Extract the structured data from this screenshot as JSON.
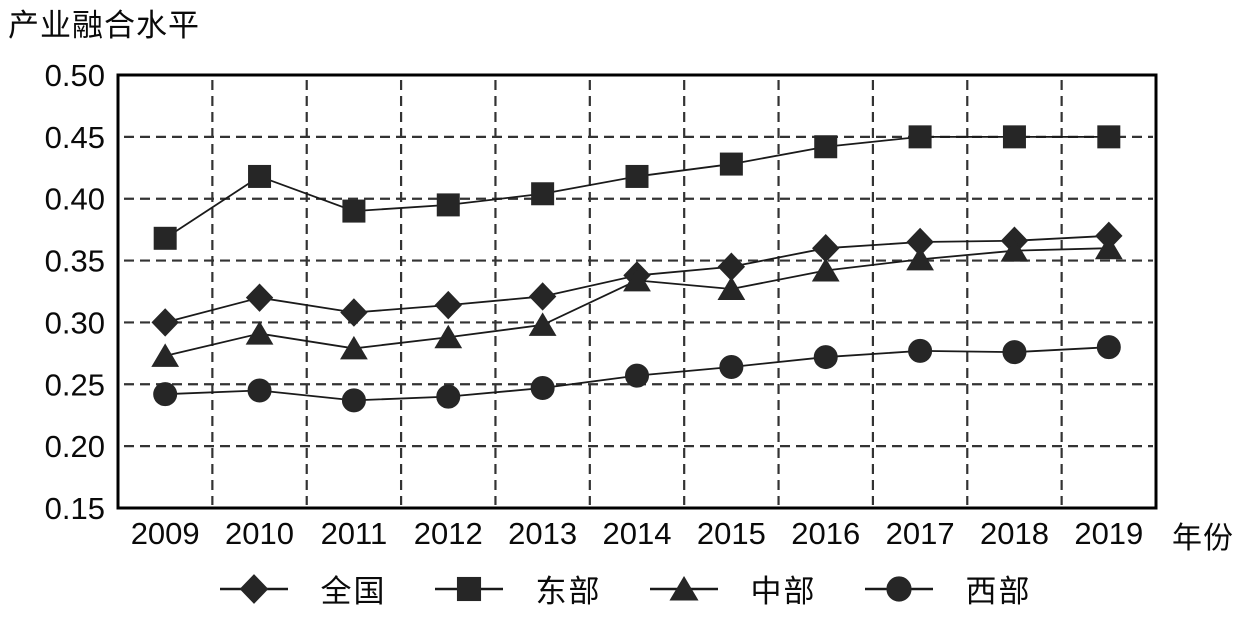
{
  "title": "产业融合水平",
  "x_axis_label": "年份",
  "colors": {
    "ink": "#1a1a1a",
    "marker": "#262626",
    "grid": "#333333",
    "background": "#ffffff"
  },
  "chart_data": {
    "type": "line",
    "title": "产业融合水平",
    "xlabel": "年份",
    "ylabel": "",
    "categories": [
      "2009",
      "2010",
      "2011",
      "2012",
      "2013",
      "2014",
      "2015",
      "2016",
      "2017",
      "2018",
      "2019"
    ],
    "series": [
      {
        "name": "全国",
        "marker": "diamond",
        "values": [
          0.3,
          0.32,
          0.308,
          0.314,
          0.321,
          0.338,
          0.345,
          0.36,
          0.365,
          0.366,
          0.37
        ]
      },
      {
        "name": "东部",
        "marker": "square",
        "values": [
          0.368,
          0.418,
          0.39,
          0.395,
          0.404,
          0.418,
          0.428,
          0.442,
          0.45,
          0.45,
          0.45
        ]
      },
      {
        "name": "中部",
        "marker": "triangle",
        "values": [
          0.273,
          0.291,
          0.279,
          0.288,
          0.298,
          0.334,
          0.327,
          0.342,
          0.351,
          0.358,
          0.36
        ]
      },
      {
        "name": "西部",
        "marker": "circle",
        "values": [
          0.242,
          0.245,
          0.237,
          0.24,
          0.247,
          0.257,
          0.264,
          0.272,
          0.277,
          0.276,
          0.28
        ]
      }
    ],
    "ylim": [
      0.15,
      0.5
    ],
    "ytick_step": 0.05,
    "ytick_labels": [
      "0.15",
      "0.20",
      "0.25",
      "0.30",
      "0.35",
      "0.40",
      "0.45",
      "0.50"
    ],
    "grid": "dashed",
    "legend_position": "bottom"
  }
}
